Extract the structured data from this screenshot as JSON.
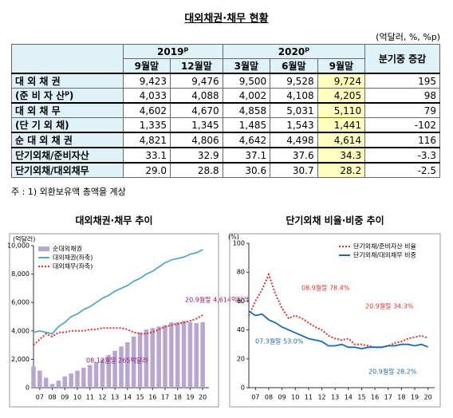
{
  "title": "대외채권·채무 현황",
  "unit": "(억달러, %, %p)",
  "table": {
    "years": [
      {
        "text": "2019",
        "sup": "p"
      },
      {
        "text": "2020",
        "sup": "p"
      }
    ],
    "columns": [
      "9월말",
      "12월말",
      "3월말",
      "6월말",
      "9월말"
    ],
    "change": "분기중 증감",
    "rows": [
      {
        "label": "대 외 채 권",
        "cells": [
          "9,423",
          "9,476",
          "9,500",
          "9,528",
          "9,724",
          "195"
        ]
      },
      {
        "label": "(준 비 자 산",
        "sup": "p",
        "tail": ")",
        "cells": [
          "4,033",
          "4,088",
          "4,002",
          "4,108",
          "4,205",
          "98"
        ]
      },
      {
        "label": "대 외 채 무",
        "cells": [
          "4,602",
          "4,670",
          "4,858",
          "5,031",
          "5,110",
          "79"
        ]
      },
      {
        "label": "(단 기 외 채)",
        "cells": [
          "1,335",
          "1,345",
          "1,485",
          "1,543",
          "1,441",
          "-102"
        ]
      },
      {
        "label": "순 대 외 채 권",
        "cells": [
          "4,821",
          "4,806",
          "4,642",
          "4,498",
          "4,614",
          "116"
        ]
      },
      {
        "label": "단기외채/준비자산",
        "cells": [
          "33.1",
          "32.9",
          "37.1",
          "37.6",
          "34.3",
          "-3.3"
        ]
      },
      {
        "label": "단기외채/대외채무",
        "cells": [
          "29.0",
          "28.8",
          "30.6",
          "30.7",
          "28.2",
          "-2.5"
        ]
      }
    ]
  },
  "note": "주 : 1) 외환보유액 총액을 계상",
  "chart_data": [
    {
      "type": "combo",
      "title": "대외채권·채무 추이",
      "ylabel": "(억달러)",
      "legend": "upper left",
      "grid": false,
      "x": [
        2007,
        2007.5,
        2008,
        2008.5,
        2009,
        2009.5,
        2010,
        2010.5,
        2011,
        2011.5,
        2012,
        2012.5,
        2013,
        2013.5,
        2014,
        2014.5,
        2015,
        2015.5,
        2016,
        2016.5,
        2017,
        2017.5,
        2018,
        2018.5,
        2019,
        2019.5,
        2020,
        2020.5
      ],
      "xlim": [
        2007,
        2021
      ],
      "xticks": [
        {
          "value": 2007.5,
          "label": "07"
        },
        {
          "value": 2008.5,
          "label": "08"
        },
        {
          "value": 2009.5,
          "label": "09"
        },
        {
          "value": 2010.5,
          "label": "10"
        },
        {
          "value": 2011.5,
          "label": "11"
        },
        {
          "value": 2012.5,
          "label": "12"
        },
        {
          "value": 2013.5,
          "label": "13"
        },
        {
          "value": 2014.5,
          "label": "14"
        },
        {
          "value": 2015.5,
          "label": "15"
        },
        {
          "value": 2016.5,
          "label": "16"
        },
        {
          "value": 2017.5,
          "label": "17"
        },
        {
          "value": 2018.5,
          "label": "18"
        },
        {
          "value": 2019.5,
          "label": "19"
        },
        {
          "value": 2020.5,
          "label": "20"
        }
      ],
      "ylim": [
        0,
        10000
      ],
      "yticks": [
        0,
        {
          "value": 2000,
          "label": "2,000"
        },
        {
          "value": 4000,
          "label": "4,000"
        },
        {
          "value": 6000,
          "label": "6,000"
        },
        {
          "value": 8000,
          "label": "8,000"
        },
        {
          "value": 10000,
          "label": "10,000"
        }
      ],
      "series": [
        {
          "name": "순대외채권",
          "kind": "bar",
          "color": "#b7a6cf",
          "values": [
            1500,
            1200,
            700,
            265,
            500,
            800,
            1000,
            1200,
            1400,
            1600,
            1800,
            2000,
            2300,
            2600,
            2900,
            3200,
            3600,
            3900,
            4100,
            4200,
            4300,
            4400,
            4600,
            4600,
            4700,
            4600,
            4550,
            4614
          ]
        },
        {
          "name": "대외채권(좌축)",
          "kind": "line",
          "color": "#5aa7c8",
          "values": [
            3900,
            4000,
            3900,
            3800,
            4300,
            4600,
            5000,
            5200,
            5500,
            5700,
            6000,
            6300,
            6500,
            6800,
            7000,
            7200,
            7500,
            7700,
            8000,
            8200,
            8500,
            8800,
            9000,
            9100,
            9200,
            9400,
            9500,
            9724
          ]
        },
        {
          "name": "대외채무(좌축)",
          "kind": "dots",
          "color": "#e03030",
          "values": [
            3000,
            3400,
            3800,
            3600,
            3900,
            3900,
            4000,
            4000,
            4000,
            4100,
            4100,
            4200,
            4200,
            4200,
            4200,
            4100,
            3900,
            3800,
            3800,
            3900,
            4100,
            4300,
            4400,
            4500,
            4600,
            4700,
            4858,
            5110
          ]
        }
      ],
      "annotations": [
        "20.9월말 4,614억달러",
        "08.12월말 265억달러"
      ]
    },
    {
      "type": "line",
      "title": "단기외채 비율·비중 추이",
      "ylabel": "(%)",
      "legend": "upper right",
      "grid": false,
      "x": [
        2007,
        2007.5,
        2008,
        2008.5,
        2009,
        2009.5,
        2010,
        2010.5,
        2011,
        2011.5,
        2012,
        2012.5,
        2013,
        2013.5,
        2014,
        2014.5,
        2015,
        2015.5,
        2016,
        2016.5,
        2017,
        2017.5,
        2018,
        2018.5,
        2019,
        2019.5,
        2020,
        2020.5
      ],
      "xlim": [
        2007,
        2021
      ],
      "xticks": [
        {
          "value": 2007.5,
          "label": "07"
        },
        {
          "value": 2008.5,
          "label": "08"
        },
        {
          "value": 2009.5,
          "label": "09"
        },
        {
          "value": 2010.5,
          "label": "10"
        },
        {
          "value": 2011.5,
          "label": "11"
        },
        {
          "value": 2012.5,
          "label": "12"
        },
        {
          "value": 2013.5,
          "label": "13"
        },
        {
          "value": 2014.5,
          "label": "14"
        },
        {
          "value": 2015.5,
          "label": "15"
        },
        {
          "value": 2016.5,
          "label": "16"
        },
        {
          "value": 2017.5,
          "label": "17"
        },
        {
          "value": 2018.5,
          "label": "18"
        },
        {
          "value": 2019.5,
          "label": "19"
        },
        {
          "value": 2020.5,
          "label": "20"
        }
      ],
      "ylim": [
        0,
        100
      ],
      "yticks": [
        0,
        20,
        40,
        60,
        80,
        100
      ],
      "series": [
        {
          "name": "단기외채/준비자산 비율",
          "kind": "dots",
          "color": "#e03030",
          "values": [
            50,
            60,
            68,
            78.4,
            65,
            55,
            48,
            50,
            48,
            45,
            42,
            40,
            36,
            34,
            33,
            34,
            30,
            30,
            29,
            28,
            28,
            29,
            31,
            32,
            34,
            35,
            36,
            34.3
          ]
        },
        {
          "name": "단기외채/대외채무 비중",
          "kind": "line",
          "color": "#1f6aa5",
          "values": [
            53,
            50,
            51,
            47,
            45,
            42,
            40,
            38,
            36,
            34,
            33,
            32,
            29,
            29,
            30,
            28,
            28,
            27,
            28,
            28,
            28,
            29,
            29,
            30,
            30,
            29,
            30,
            28.2
          ]
        }
      ],
      "annotations": [
        "08.9월말 78.4%",
        "07.3월말 53.0%",
        "20.9월말 34.3%",
        "20.9월말 28.2%"
      ]
    }
  ]
}
